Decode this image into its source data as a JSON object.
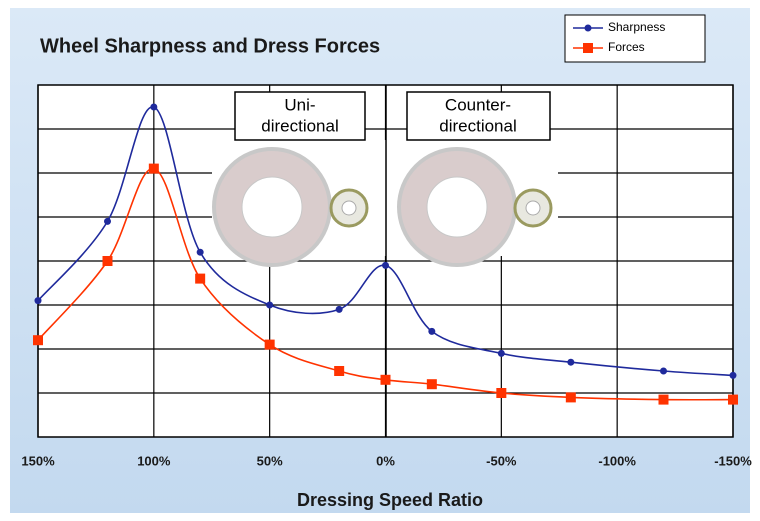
{
  "chart_data": {
    "type": "line",
    "title": "Wheel Sharpness and Dress Forces",
    "x_label": "Dressing Speed Ratio",
    "annotations": [
      "Uni-",
      "directional",
      "Counter-",
      "directional"
    ],
    "x": [
      150,
      120,
      100,
      80,
      50,
      20,
      0,
      -20,
      -50,
      -80,
      -120,
      -150
    ],
    "series": [
      {
        "name": "Sharpness",
        "color": "#1f2a9c",
        "marker": "circle",
        "values": [
          3.1,
          4.9,
          7.5,
          4.2,
          3.0,
          2.9,
          3.9,
          2.4,
          1.9,
          1.7,
          1.5,
          1.4
        ]
      },
      {
        "name": "Forces",
        "color": "#ff3300",
        "marker": "square",
        "values": [
          2.2,
          4.0,
          6.1,
          3.6,
          2.1,
          1.5,
          1.3,
          1.2,
          1.0,
          0.9,
          0.85,
          0.85
        ]
      }
    ],
    "xlim": [
      150,
      -150
    ],
    "xticks": [
      {
        "value": 150,
        "label": "150%"
      },
      {
        "value": 100,
        "label": "100%"
      },
      {
        "value": 50,
        "label": "50%"
      },
      {
        "value": 0,
        "label": "0%"
      },
      {
        "value": -50,
        "label": "-50%"
      },
      {
        "value": -100,
        "label": "-100%"
      },
      {
        "value": -150,
        "label": "-150%"
      }
    ],
    "ylim": [
      0,
      8
    ],
    "ygrid": [
      1,
      2,
      3,
      4,
      5,
      6,
      7
    ],
    "grid": true,
    "legend": "top-right"
  }
}
